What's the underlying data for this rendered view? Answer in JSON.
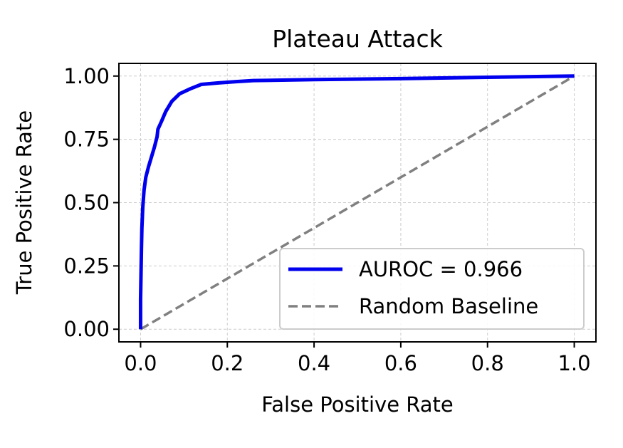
{
  "chart_data": {
    "type": "line",
    "title": "Plateau Attack",
    "xlabel": "False Positive Rate",
    "ylabel": "True Positive Rate",
    "xlim": [
      -0.05,
      1.05
    ],
    "ylim": [
      -0.05,
      1.05
    ],
    "xticks": [
      0.0,
      0.2,
      0.4,
      0.6,
      0.8,
      1.0
    ],
    "xtick_labels": [
      "0.0",
      "0.2",
      "0.4",
      "0.6",
      "0.8",
      "1.0"
    ],
    "yticks": [
      0.0,
      0.25,
      0.5,
      0.75,
      1.0
    ],
    "ytick_labels": [
      "0.00",
      "0.25",
      "0.50",
      "0.75",
      "1.00"
    ],
    "grid": true,
    "legend_position": "lower-right",
    "series": [
      {
        "name": "AUROC = 0.966",
        "color": "#0000ee",
        "style": "solid",
        "x": [
          0.0,
          0.0,
          0.001,
          0.002,
          0.003,
          0.005,
          0.008,
          0.012,
          0.018,
          0.025,
          0.032,
          0.038,
          0.04,
          0.048,
          0.058,
          0.072,
          0.09,
          0.115,
          0.14,
          0.18,
          0.22,
          0.26,
          0.4,
          0.6,
          0.8,
          1.0
        ],
        "y": [
          0.0,
          0.12,
          0.22,
          0.32,
          0.4,
          0.48,
          0.55,
          0.6,
          0.64,
          0.68,
          0.72,
          0.76,
          0.79,
          0.82,
          0.86,
          0.9,
          0.93,
          0.95,
          0.967,
          0.973,
          0.978,
          0.982,
          0.986,
          0.99,
          0.995,
          1.0
        ]
      },
      {
        "name": "Random Baseline",
        "color": "#808080",
        "style": "dashed",
        "x": [
          0.0,
          1.0
        ],
        "y": [
          0.0,
          1.0
        ]
      }
    ]
  }
}
